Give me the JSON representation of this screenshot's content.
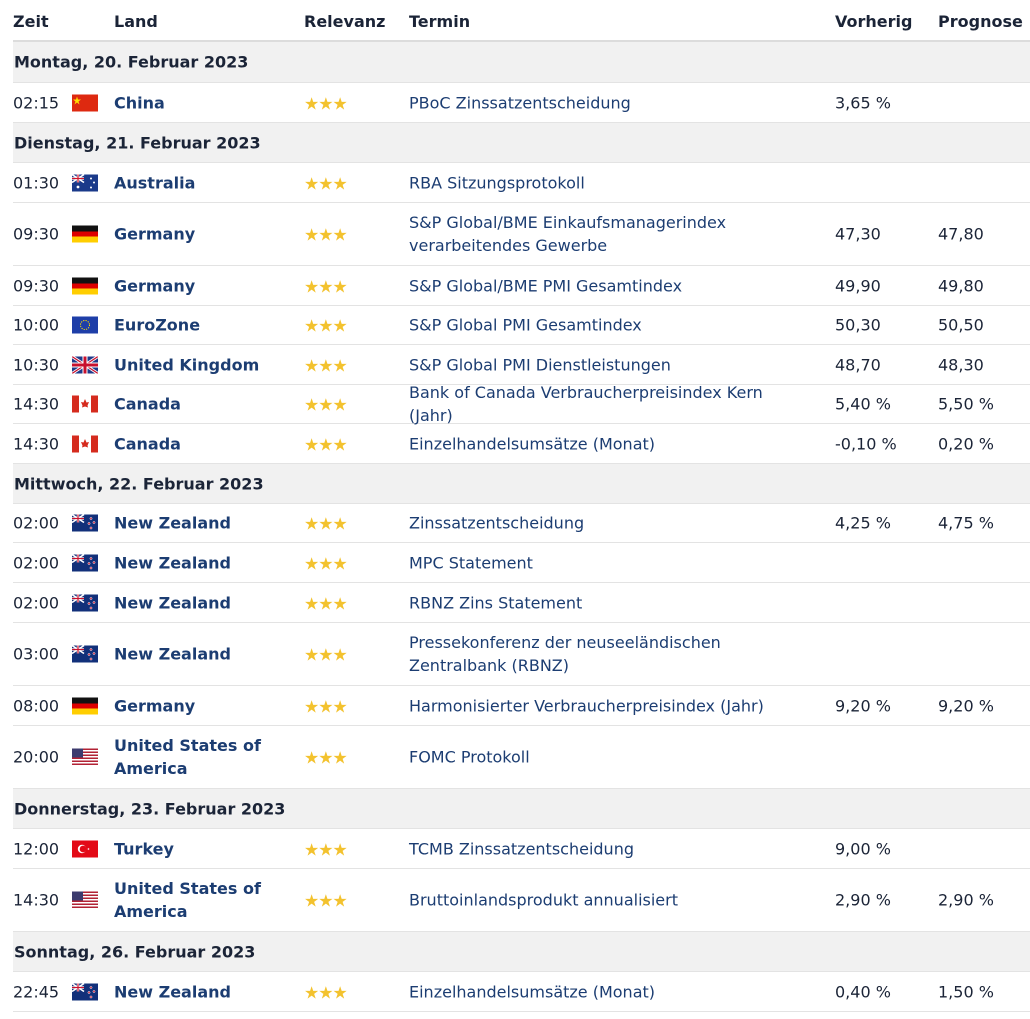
{
  "headers": {
    "time": "Zeit",
    "country": "Land",
    "relevance": "Relevanz",
    "event": "Termin",
    "previous": "Vorherig",
    "forecast": "Prognose"
  },
  "rows": [
    {
      "type": "day",
      "label": "Montag, 20. Februar 2023"
    },
    {
      "type": "event",
      "time": "02:15",
      "flag": "cn",
      "country": "China",
      "stars": "★★★",
      "event": "PBoC Zinssatzentscheidung",
      "previous": "3,65 %",
      "forecast": ""
    },
    {
      "type": "day",
      "label": "Dienstag, 21. Februar 2023"
    },
    {
      "type": "event",
      "time": "01:30",
      "flag": "au",
      "country": "Australia",
      "stars": "★★★",
      "event": "RBA Sitzungsprotokoll",
      "previous": "",
      "forecast": ""
    },
    {
      "type": "event",
      "time": "09:30",
      "flag": "de",
      "country": "Germany",
      "stars": "★★★",
      "event": "S&P Global/BME Einkaufsmanagerindex verarbeitendes Gewerbe",
      "previous": "47,30",
      "forecast": "47,80"
    },
    {
      "type": "event",
      "time": "09:30",
      "flag": "de",
      "country": "Germany",
      "stars": "★★★",
      "event": "S&P Global/BME PMI Gesamtindex",
      "previous": "49,90",
      "forecast": "49,80"
    },
    {
      "type": "event",
      "time": "10:00",
      "flag": "eu",
      "country": "EuroZone",
      "stars": "★★★",
      "event": "S&P Global PMI Gesamtindex",
      "previous": "50,30",
      "forecast": "50,50"
    },
    {
      "type": "event",
      "time": "10:30",
      "flag": "gb",
      "country": "United Kingdom",
      "stars": "★★★",
      "event": "S&P Global PMI Dienstleistungen",
      "previous": "48,70",
      "forecast": "48,30"
    },
    {
      "type": "event",
      "time": "14:30",
      "flag": "ca",
      "country": "Canada",
      "stars": "★★★",
      "event": "Bank of Canada Verbraucherpreisindex Kern (Jahr)",
      "previous": "5,40 %",
      "forecast": "5,50 %"
    },
    {
      "type": "event",
      "time": "14:30",
      "flag": "ca",
      "country": "Canada",
      "stars": "★★★",
      "event": "Einzelhandelsumsätze (Monat)",
      "previous": "-0,10 %",
      "forecast": "0,20 %"
    },
    {
      "type": "day",
      "label": "Mittwoch, 22. Februar 2023"
    },
    {
      "type": "event",
      "time": "02:00",
      "flag": "nz",
      "country": "New Zealand",
      "stars": "★★★",
      "event": "Zinssatzentscheidung",
      "previous": "4,25 %",
      "forecast": "4,75 %"
    },
    {
      "type": "event",
      "time": "02:00",
      "flag": "nz",
      "country": "New Zealand",
      "stars": "★★★",
      "event": "MPC Statement",
      "previous": "",
      "forecast": ""
    },
    {
      "type": "event",
      "time": "02:00",
      "flag": "nz",
      "country": "New Zealand",
      "stars": "★★★",
      "event": "RBNZ Zins Statement",
      "previous": "",
      "forecast": ""
    },
    {
      "type": "event",
      "time": "03:00",
      "flag": "nz",
      "country": "New Zealand",
      "stars": "★★★",
      "event": "Pressekonferenz der neuseeländischen Zentralbank (RBNZ)",
      "previous": "",
      "forecast": ""
    },
    {
      "type": "event",
      "time": "08:00",
      "flag": "de",
      "country": "Germany",
      "stars": "★★★",
      "event": "Harmonisierter Verbraucherpreisindex (Jahr)",
      "previous": "9,20 %",
      "forecast": "9,20 %"
    },
    {
      "type": "event",
      "time": "20:00",
      "flag": "us",
      "country": "United States of America",
      "stars": "★★★",
      "event": "FOMC Protokoll",
      "previous": "",
      "forecast": ""
    },
    {
      "type": "day",
      "label": "Donnerstag, 23. Februar 2023"
    },
    {
      "type": "event",
      "time": "12:00",
      "flag": "tr",
      "country": "Turkey",
      "stars": "★★★",
      "event": "TCMB Zinssatzentscheidung",
      "previous": "9,00 %",
      "forecast": ""
    },
    {
      "type": "event",
      "time": "14:30",
      "flag": "us",
      "country": "United States of America",
      "stars": "★★★",
      "event": "Bruttoinlandsprodukt annualisiert",
      "previous": "2,90 %",
      "forecast": "2,90 %"
    },
    {
      "type": "day",
      "label": "Sonntag, 26. Februar 2023"
    },
    {
      "type": "event",
      "time": "22:45",
      "flag": "nz",
      "country": "New Zealand",
      "stars": "★★★",
      "event": "Einzelhandelsumsätze (Monat)",
      "previous": "0,40 %",
      "forecast": "1,50 %"
    }
  ]
}
